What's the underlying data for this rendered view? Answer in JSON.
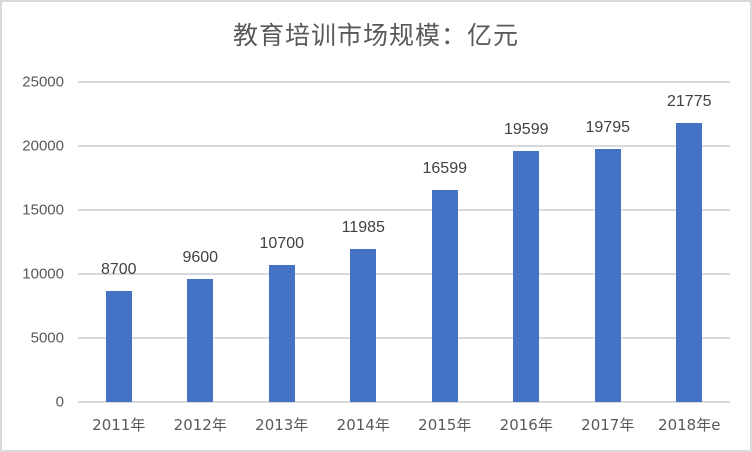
{
  "chart_data": {
    "type": "bar",
    "title": "教育培训市场规模：亿元",
    "categories": [
      "2011年",
      "2012年",
      "2013年",
      "2014年",
      "2015年",
      "2016年",
      "2017年",
      "2018年e"
    ],
    "series": [
      {
        "name": "教育培训市场规模",
        "values": [
          8700,
          9600,
          10700,
          11985,
          16599,
          19599,
          19795,
          21775
        ],
        "color": "#4472c4"
      }
    ],
    "data_labels": [
      "8700",
      "9600",
      "10700",
      "11985",
      "16599",
      "19599",
      "19795",
      "21775"
    ],
    "xlabel": "",
    "ylabel": "",
    "ylim": [
      0,
      25000
    ],
    "yticks": [
      0,
      5000,
      10000,
      15000,
      20000,
      25000
    ],
    "ytick_labels": [
      "0",
      "5000",
      "10000",
      "15000",
      "20000",
      "25000"
    ],
    "grid": true,
    "legend": null
  },
  "colors": {
    "bar": "#4472c4",
    "grid": "#d9d9d9",
    "text": "#595959",
    "border": "#d9d9d9"
  }
}
